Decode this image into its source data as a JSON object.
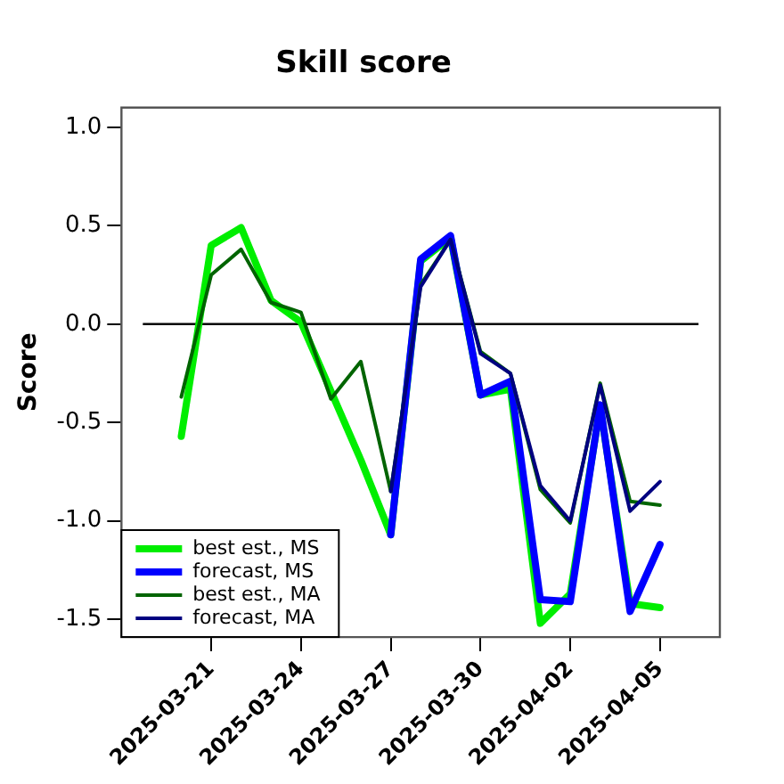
{
  "chart_data": {
    "type": "line",
    "title": "Skill score",
    "ylabel": "Score",
    "x": [
      "2025-03-20",
      "2025-03-21",
      "2025-03-22",
      "2025-03-23",
      "2025-03-24",
      "2025-03-25",
      "2025-03-26",
      "2025-03-27",
      "2025-03-28",
      "2025-03-29",
      "2025-03-30",
      "2025-03-31",
      "2025-04-01",
      "2025-04-02",
      "2025-04-03",
      "2025-04-04",
      "2025-04-05"
    ],
    "series": [
      {
        "name": "best est., MS",
        "color": "#00ee00",
        "values": [
          -0.57,
          0.4,
          0.49,
          0.12,
          0.01,
          null,
          -0.69,
          -1.07,
          0.32,
          0.44,
          -0.36,
          -0.33,
          -1.52,
          -1.37,
          -0.42,
          -1.42,
          -1.44
        ]
      },
      {
        "name": "forecast, MS",
        "color": "#0000ff",
        "values": [
          null,
          null,
          null,
          null,
          null,
          null,
          null,
          -1.07,
          0.33,
          0.45,
          -0.36,
          -0.29,
          -1.4,
          -1.41,
          -0.41,
          -1.46,
          -1.12
        ]
      },
      {
        "name": "best est., MA",
        "color": "#006400",
        "values": [
          -0.37,
          0.25,
          0.38,
          0.11,
          0.06,
          -0.38,
          -0.19,
          -0.85,
          0.2,
          0.43,
          -0.14,
          -0.25,
          -0.84,
          -1.01,
          -0.3,
          -0.9,
          -0.92
        ]
      },
      {
        "name": "forecast, MA",
        "color": "#000080",
        "values": [
          null,
          null,
          null,
          null,
          null,
          null,
          null,
          -0.85,
          0.19,
          0.43,
          -0.15,
          -0.25,
          -0.82,
          -1.0,
          -0.31,
          -0.95,
          -0.8
        ]
      }
    ],
    "xlim": [
      "2025-03-18",
      "2025-04-07"
    ],
    "xticks": [
      "2025-03-21",
      "2025-03-24",
      "2025-03-27",
      "2025-03-30",
      "2025-04-02",
      "2025-04-05"
    ],
    "ylim": [
      -1.59,
      1.1
    ],
    "yticks": [
      {
        "value": -1.5,
        "label": "-1.5"
      },
      {
        "value": -1,
        "label": "-1.0"
      },
      {
        "value": -0.5,
        "label": "-0.5"
      },
      {
        "value": 0,
        "label": "0.0"
      },
      {
        "value": 0.5,
        "label": "0.5"
      },
      {
        "value": 1,
        "label": "1.0"
      }
    ],
    "ref_lines": [
      {
        "axis": "y",
        "value": 0,
        "color": "#000000"
      }
    ],
    "grid": false,
    "legend": "bottom left",
    "marker": "none",
    "line_style": "solid"
  }
}
